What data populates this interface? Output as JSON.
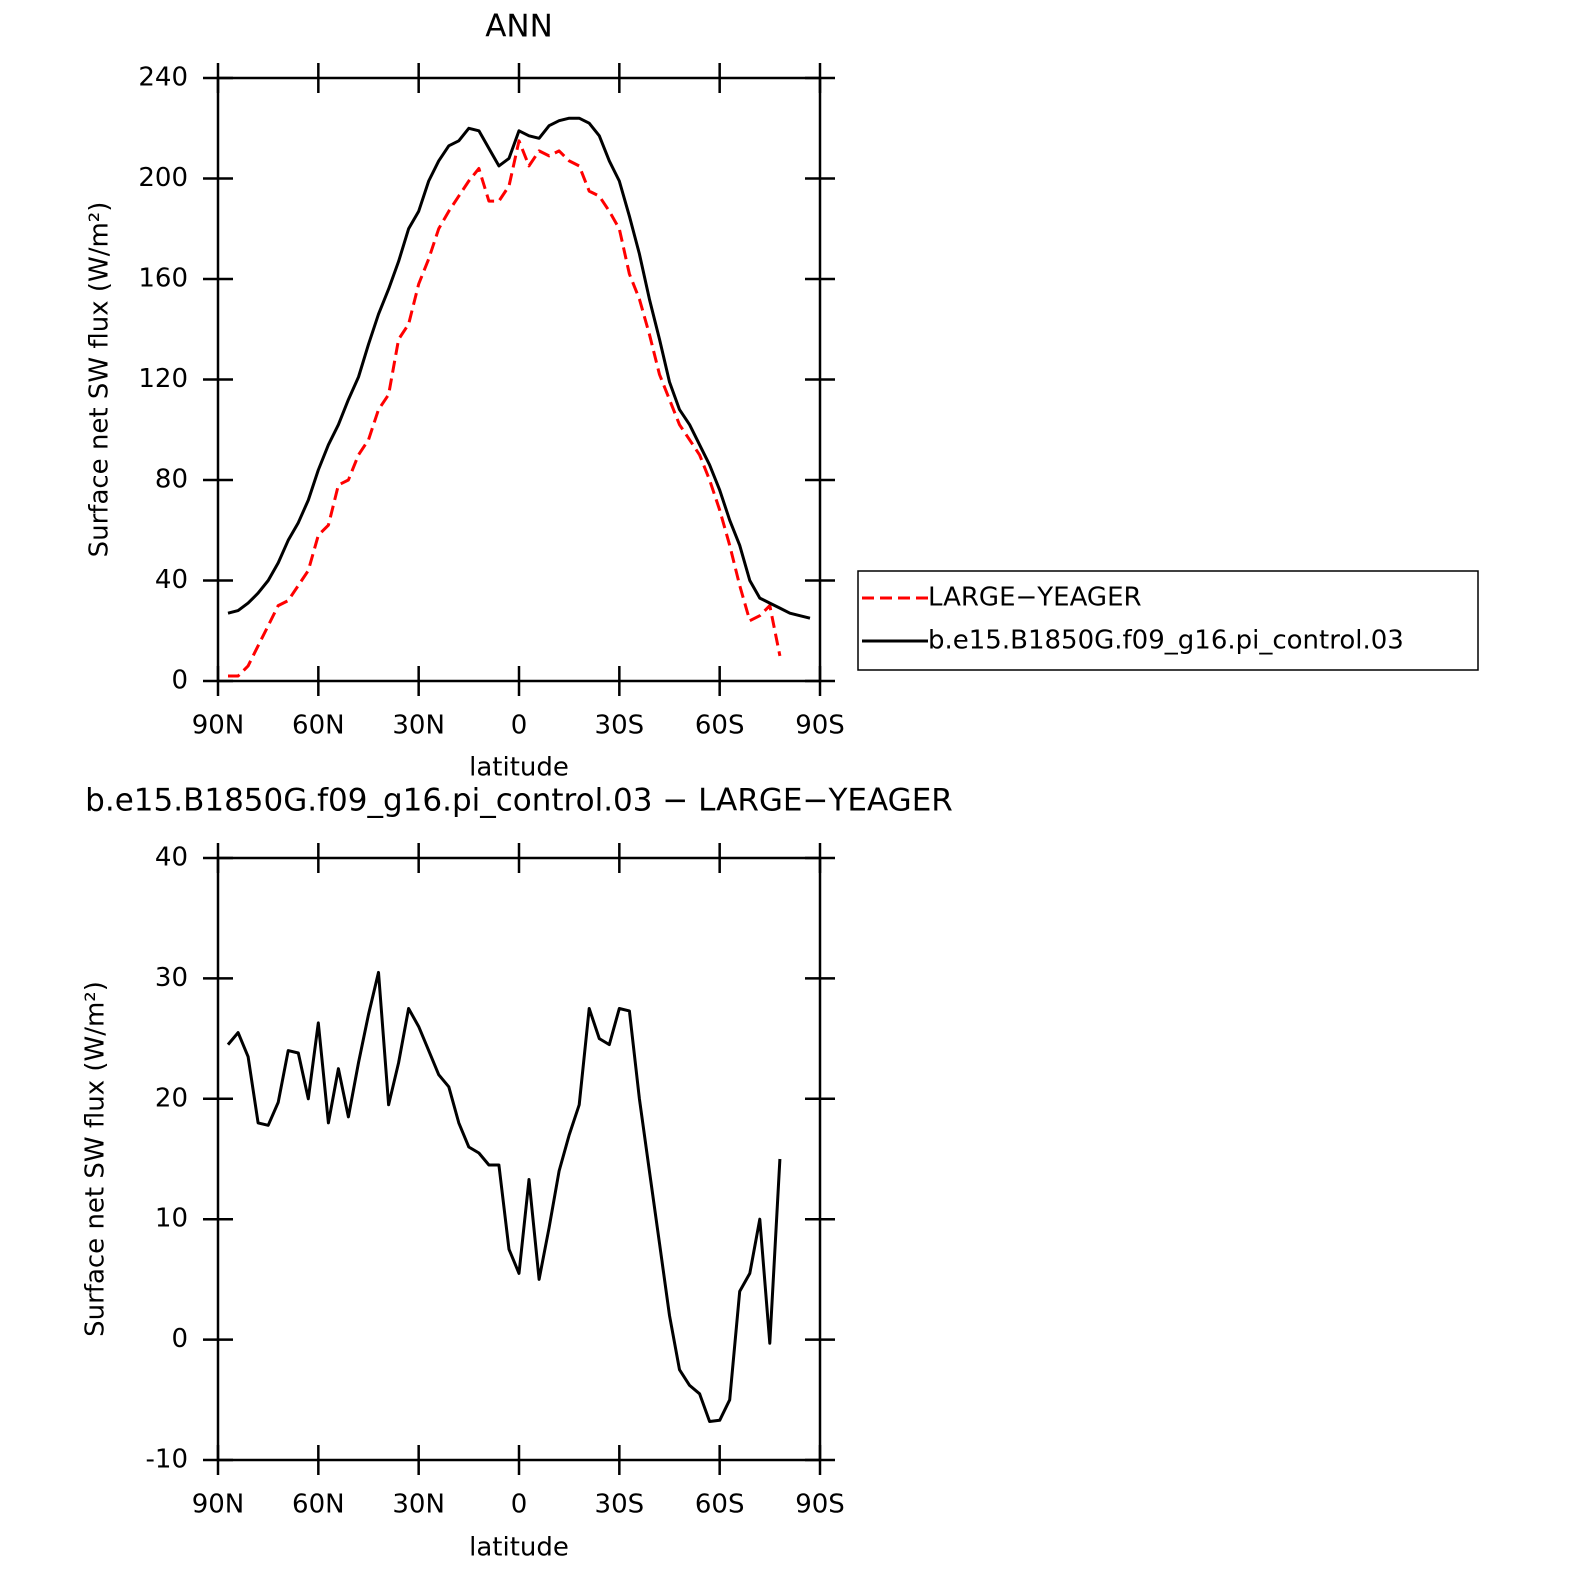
{
  "chart_data": [
    {
      "type": "line",
      "title": "ANN",
      "xlabel": "latitude",
      "ylabel": "Surface net SW flux (W/m²)",
      "x": [
        87,
        84,
        81,
        78,
        75,
        72,
        69,
        66,
        63,
        60,
        57,
        54,
        51,
        48,
        45,
        42,
        39,
        36,
        33,
        30,
        27,
        24,
        21,
        18,
        15,
        12,
        9,
        6,
        3,
        0,
        -3,
        -6,
        -9,
        -12,
        -15,
        -18,
        -21,
        -24,
        -27,
        -30,
        -33,
        -36,
        -39,
        -42,
        -45,
        -48,
        -51,
        -54,
        -57,
        -60,
        -63,
        -66,
        -69,
        -72,
        -75,
        -78,
        -81,
        -84,
        -87
      ],
      "series": [
        {
          "name": "LARGE−YEAGER",
          "color": "#ff0000",
          "line_style": "dashed",
          "values": [
            2,
            2,
            6,
            14,
            22,
            30,
            32,
            38,
            44,
            58,
            62,
            78,
            80,
            90,
            96,
            108,
            114,
            136,
            142,
            158,
            168,
            180,
            187,
            193,
            199,
            204,
            191,
            191,
            197,
            215,
            205,
            211,
            209,
            211,
            207,
            205,
            195,
            193,
            187,
            180,
            162,
            152,
            138,
            122,
            112,
            102,
            96,
            90,
            80,
            68,
            54,
            38,
            24,
            26,
            30,
            10,
            null,
            null,
            null
          ]
        },
        {
          "name": "b.e15.B1850G.f09_g16.pi_control.03",
          "color": "#000000",
          "line_style": "solid",
          "values": [
            27,
            28,
            31,
            35,
            40,
            47,
            56,
            63,
            72,
            84,
            94,
            102,
            112,
            121,
            134,
            146,
            156,
            167,
            180,
            187,
            199,
            207,
            213,
            215,
            220,
            219,
            212,
            205,
            208,
            219,
            217,
            216,
            221,
            223,
            224,
            224,
            222,
            217,
            207,
            199,
            185,
            170,
            152,
            136,
            119,
            108,
            102,
            94,
            86,
            76,
            64,
            54,
            40,
            33,
            31,
            29,
            27,
            26,
            25
          ]
        }
      ],
      "xlim": [
        90,
        -90
      ],
      "xticks": [
        {
          "value": 90,
          "label": "90N"
        },
        {
          "value": 60,
          "label": "60N"
        },
        {
          "value": 30,
          "label": "30N"
        },
        0,
        {
          "value": -30,
          "label": "30S"
        },
        {
          "value": -60,
          "label": "60S"
        },
        {
          "value": -90,
          "label": "90S"
        }
      ],
      "ylim": [
        0,
        240
      ],
      "yticks": [
        0,
        40,
        80,
        120,
        160,
        200,
        240
      ],
      "legend": "right"
    },
    {
      "type": "line",
      "title": "b.e15.B1850G.f09_g16.pi_control.03 − LARGE−YEAGER",
      "xlabel": "latitude",
      "ylabel": "Surface net SW flux (W/m²)",
      "x": [
        87,
        84,
        81,
        78,
        75,
        72,
        69,
        66,
        63,
        60,
        57,
        54,
        51,
        48,
        45,
        42,
        39,
        36,
        33,
        30,
        27,
        24,
        21,
        18,
        15,
        12,
        9,
        6,
        3,
        0,
        -3,
        -6,
        -9,
        -12,
        -15,
        -18,
        -21,
        -24,
        -27,
        -30,
        -33,
        -36,
        -39,
        -42,
        -45,
        -48,
        -51,
        -54,
        -57,
        -60,
        -63,
        -66,
        -69,
        -72,
        -75,
        -78,
        -81,
        -84,
        -87
      ],
      "series": [
        {
          "color": "#000000",
          "line_style": "solid",
          "values": [
            24.5,
            25.5,
            23.5,
            18,
            17.8,
            19.7,
            24,
            23.8,
            20,
            26.3,
            18,
            22.5,
            18.5,
            23,
            27,
            30.5,
            19.5,
            23,
            27.5,
            26,
            24,
            22,
            21,
            18,
            16,
            15.5,
            14.5,
            14.5,
            7.5,
            5.5,
            13.3,
            5,
            9.3,
            14,
            17,
            19.5,
            27.5,
            25,
            24.5,
            27.5,
            27.3,
            20,
            14,
            8,
            2,
            -2.5,
            -3.8,
            -4.5,
            -6.8,
            -6.7,
            -5,
            4,
            5.5,
            10,
            -0.3,
            15,
            null,
            null,
            null
          ]
        }
      ],
      "xlim": [
        90,
        -90
      ],
      "xticks": [
        {
          "value": 90,
          "label": "90N"
        },
        {
          "value": 60,
          "label": "60N"
        },
        {
          "value": 30,
          "label": "30N"
        },
        0,
        {
          "value": -30,
          "label": "30S"
        },
        {
          "value": -60,
          "label": "60S"
        },
        {
          "value": -90,
          "label": "90S"
        }
      ],
      "ylim": [
        -10,
        40
      ],
      "yticks": [
        -10,
        0,
        10,
        20,
        30,
        40
      ]
    }
  ]
}
